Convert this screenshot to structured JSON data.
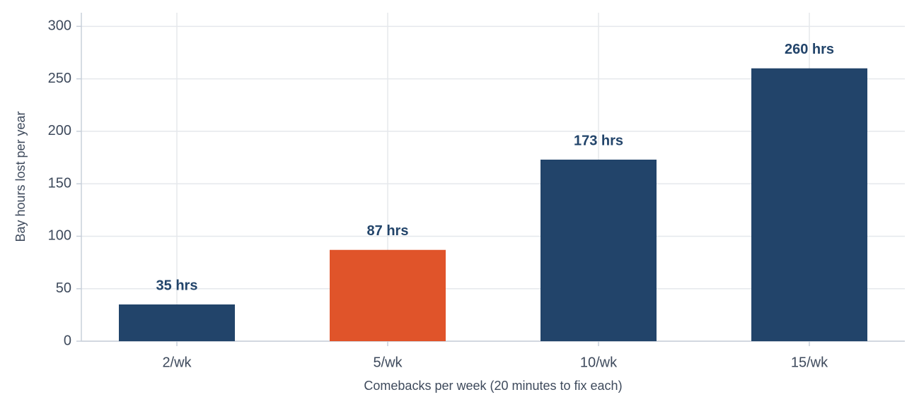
{
  "chart_data": {
    "type": "bar",
    "x_label": "Comebacks per week (20 minutes to fix each)",
    "y_label": "Bay hours lost per year",
    "categories": [
      "2/wk",
      "5/wk",
      "10/wk",
      "15/wk"
    ],
    "values": [
      35,
      87,
      173,
      260
    ],
    "value_labels": [
      "35 hrs",
      "87 hrs",
      "173 hrs",
      "260 hrs"
    ],
    "colors": [
      "#22446a",
      "#e0542a",
      "#22446a",
      "#22446a"
    ],
    "ylim": [
      0,
      313
    ],
    "yticks": [
      0,
      50,
      100,
      150,
      200,
      250,
      300
    ],
    "grid": true
  }
}
